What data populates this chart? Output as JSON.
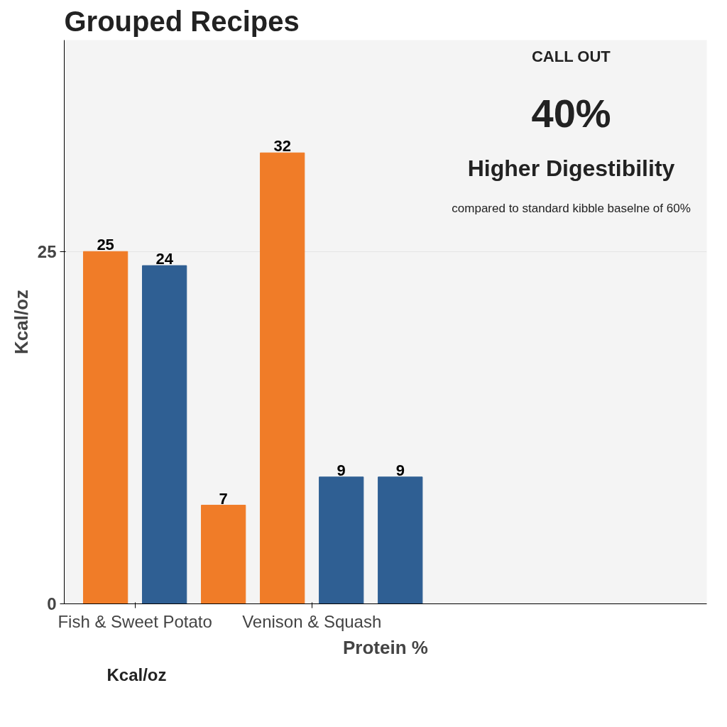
{
  "chart_data": {
    "type": "bar",
    "title": "Grouped Recipes",
    "ylabel": "Kcal/oz",
    "xlabel": "Protein %",
    "categories": [
      "Fish & Sweet Potato",
      null,
      null,
      "Venison & Squash",
      null,
      null
    ],
    "values": [
      25,
      24,
      7,
      32,
      9,
      9
    ],
    "colors": [
      "#f07c28",
      "#2f5f93",
      "#f07c28",
      "#f07c28",
      "#2f5f93",
      "#2f5f93"
    ],
    "ylim": [
      0,
      40
    ],
    "yticks": [
      0,
      25
    ],
    "grid": "y",
    "data_labels": true,
    "annotations": [
      "Kcal/oz",
      "CALL OUT",
      "40%",
      "Higher Digestibility",
      "compared to standard kibble baselne of 60%"
    ]
  }
}
